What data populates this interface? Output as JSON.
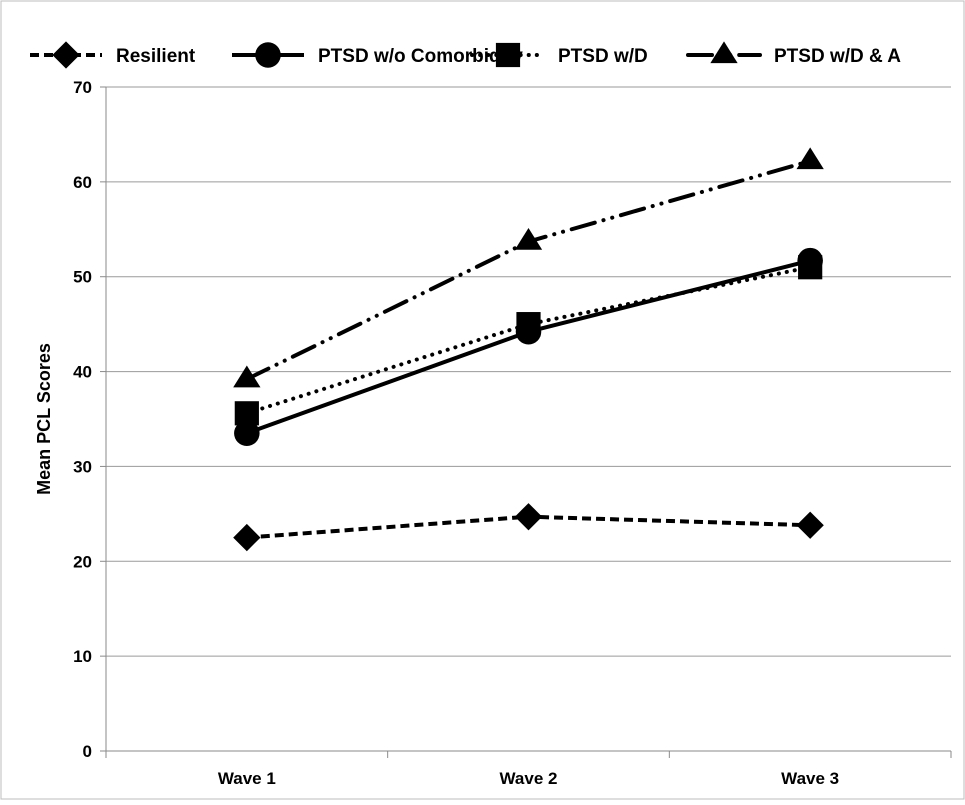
{
  "chart_data": {
    "type": "line",
    "title": "",
    "xlabel": "",
    "ylabel": "Mean PCL Scores",
    "categories": [
      "Wave 1",
      "Wave 2",
      "Wave 3"
    ],
    "ylim": [
      0,
      70
    ],
    "yticks": [
      0,
      10,
      20,
      30,
      40,
      50,
      60,
      70
    ],
    "grid": "horizontal",
    "legend": "top",
    "series": [
      {
        "name": "Resilient",
        "values": [
          22.5,
          24.7,
          23.8
        ],
        "style": "dashed",
        "marker": "diamond",
        "color": "#000000"
      },
      {
        "name": "PTSD w/o Comorbidity",
        "values": [
          33.5,
          44.2,
          51.7
        ],
        "style": "solid",
        "marker": "circle",
        "color": "#000000"
      },
      {
        "name": "PTSD w/D",
        "values": [
          35.6,
          45.0,
          51.0
        ],
        "style": "dotted",
        "marker": "square",
        "color": "#000000"
      },
      {
        "name": "PTSD w/D & A",
        "values": [
          39.2,
          53.7,
          62.2
        ],
        "style": "dash-dot-dot",
        "marker": "triangle",
        "color": "#000000"
      }
    ]
  }
}
